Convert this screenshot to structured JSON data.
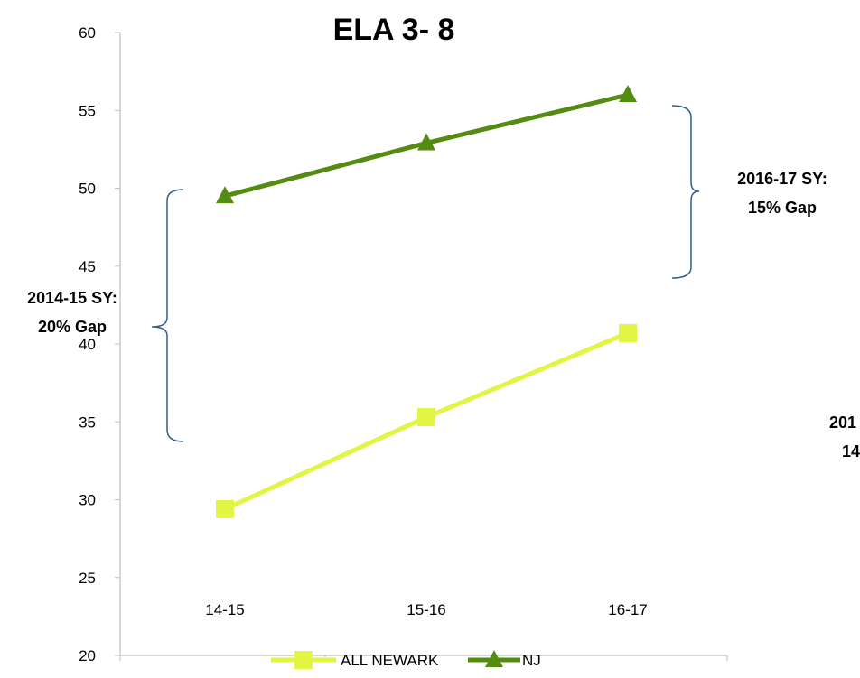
{
  "chart_data": {
    "type": "line",
    "title": "ELA 3- 8",
    "categories": [
      "14-15",
      "15-16",
      "16-17"
    ],
    "ylim": [
      20,
      60
    ],
    "yticks": [
      20,
      25,
      30,
      35,
      40,
      45,
      50,
      55,
      60
    ],
    "grid": false,
    "legend_position": "bottom",
    "series": [
      {
        "name": "ALL NEWARK",
        "values": [
          29.4,
          35.3,
          40.7
        ],
        "color": "#e2f542",
        "marker": "square"
      },
      {
        "name": "NJ",
        "values": [
          49.5,
          52.9,
          56.0
        ],
        "color": "#548c12",
        "marker": "triangle"
      }
    ],
    "annotations": [
      {
        "line1": "2014-15 SY:",
        "line2": "20% Gap"
      },
      {
        "line1": "2016-17 SY:",
        "line2": "15% Gap"
      },
      {
        "line1": "201",
        "line2": "14"
      }
    ],
    "colors": {
      "axis": "#bfbfbf",
      "bracket": "#2e5f8a"
    }
  }
}
